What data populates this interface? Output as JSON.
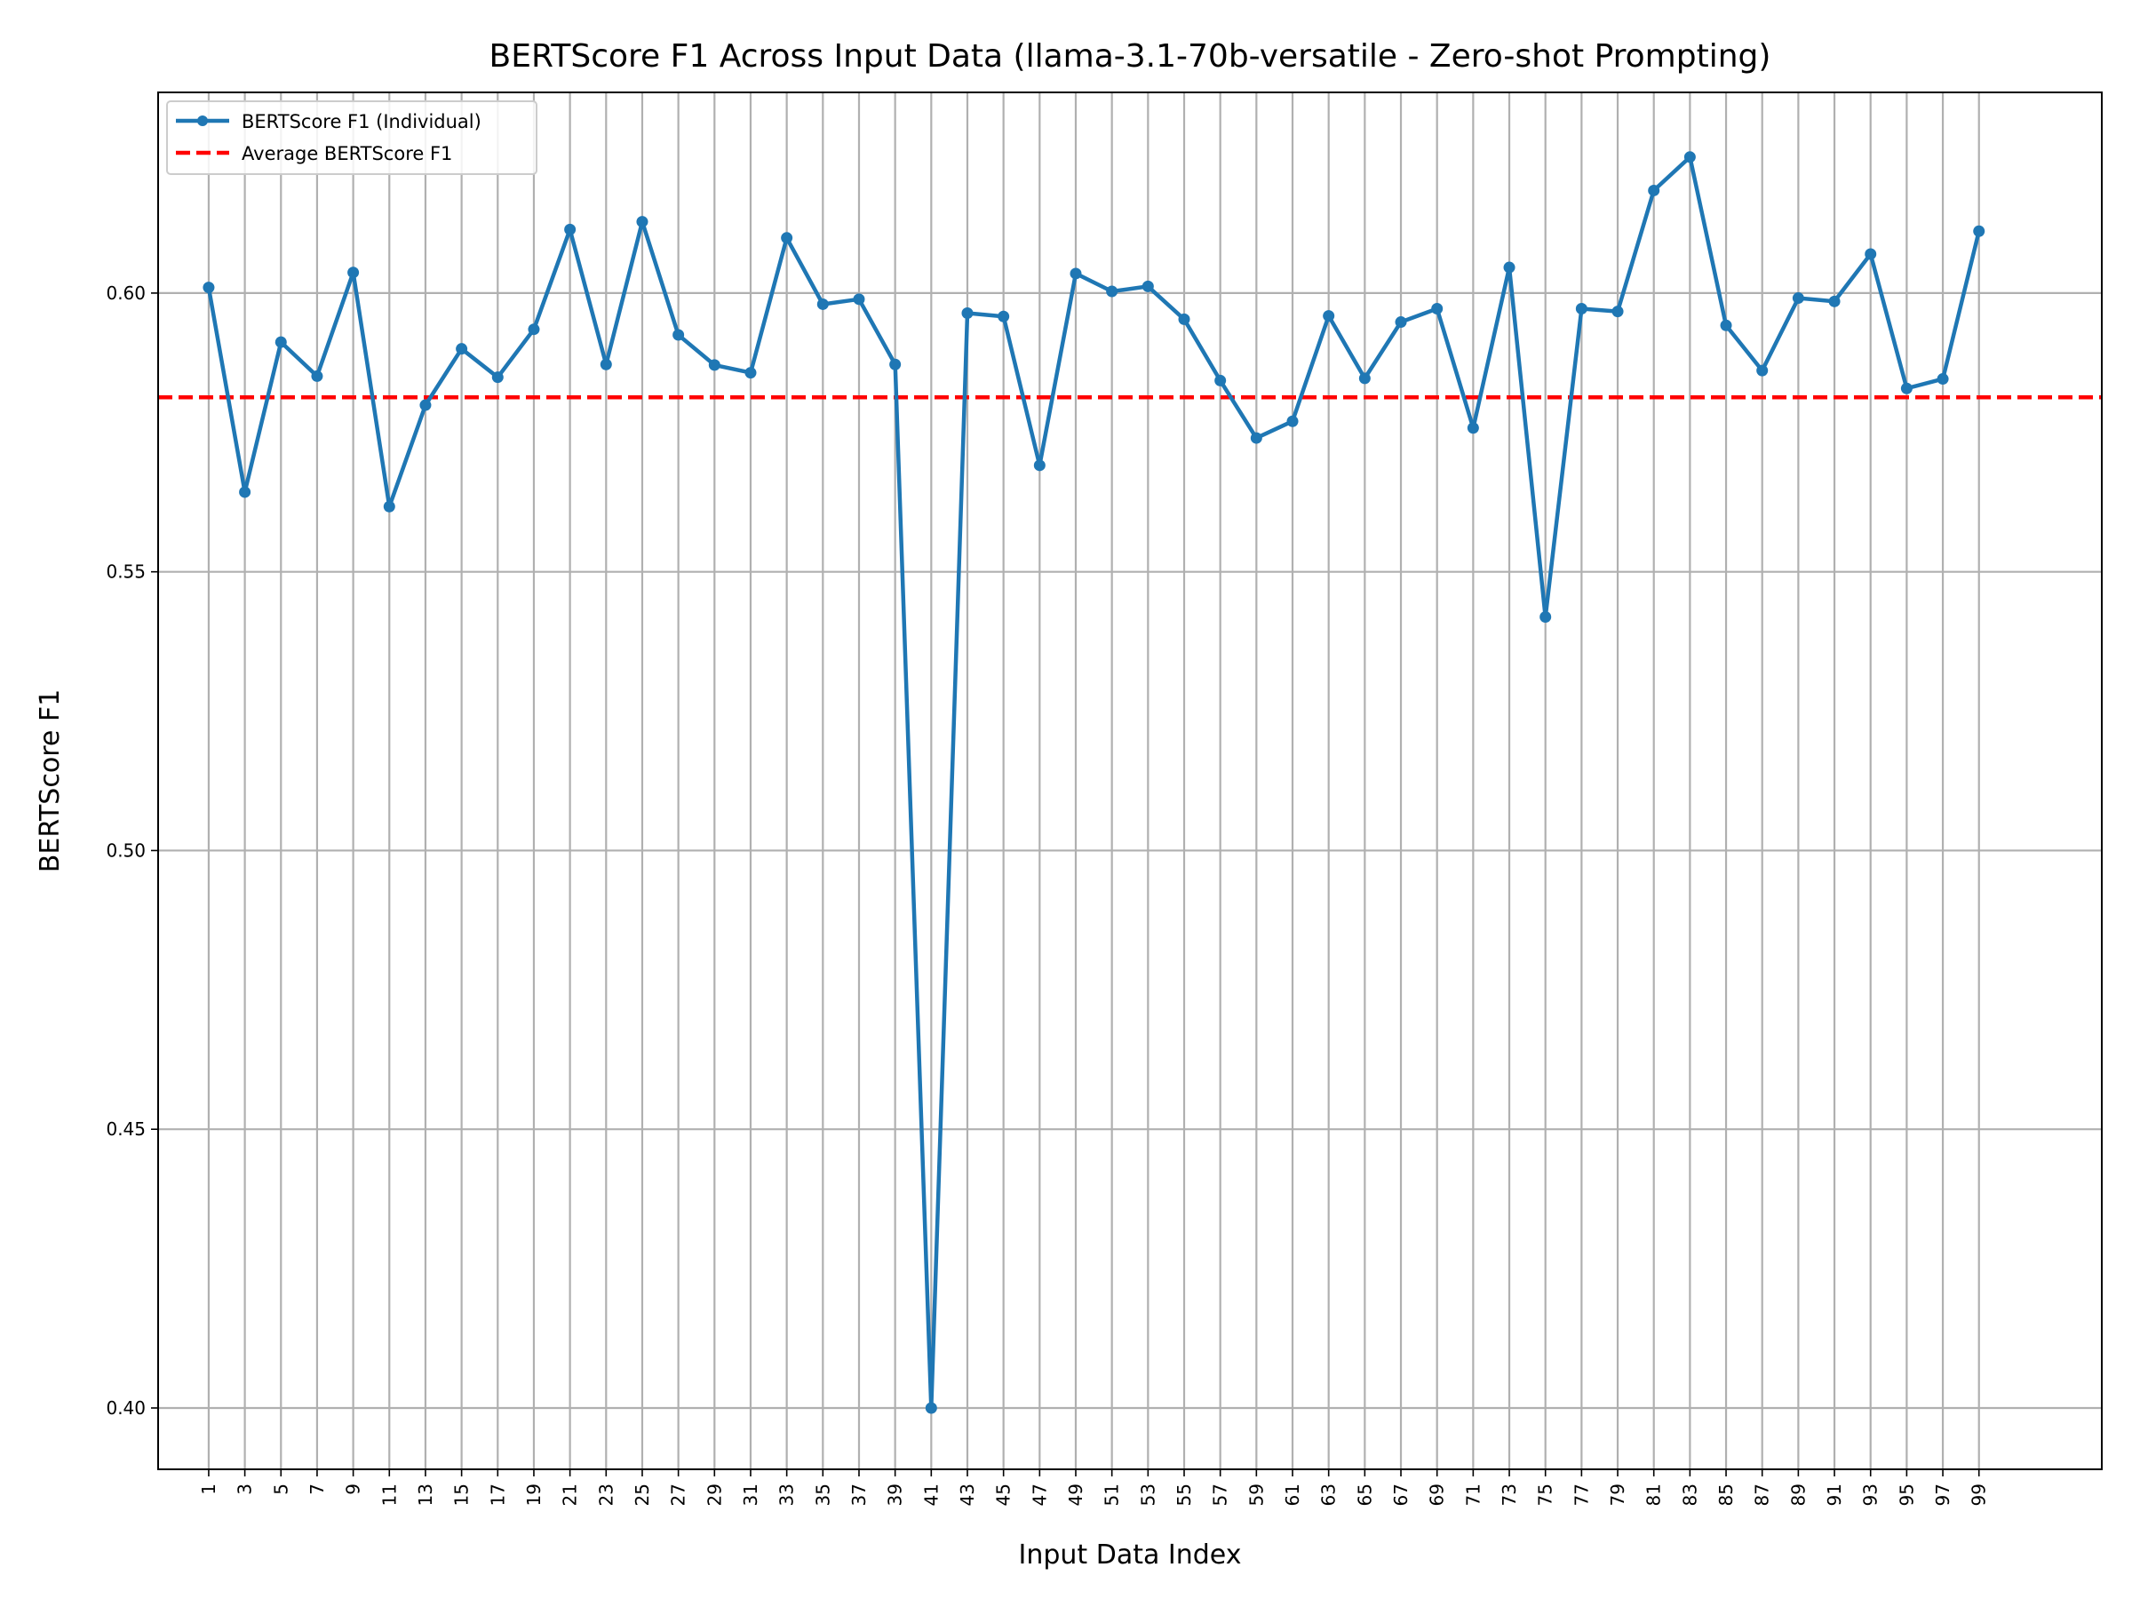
{
  "chart_data": {
    "type": "line",
    "title": "BERTScore F1 Across Input Data (llama-3.1-70b-versatile - Zero-shot Prompting)",
    "xlabel": "Input Data Index",
    "ylabel": "BERTScore F1",
    "xlim": [
      -1.4,
      52.4
    ],
    "ylim": [
      0.389,
      0.636
    ],
    "x_tick_labels": [
      "1",
      "3",
      "5",
      "7",
      "9",
      "11",
      "13",
      "15",
      "17",
      "19",
      "21",
      "23",
      "25",
      "27",
      "29",
      "31",
      "33",
      "35",
      "37",
      "39",
      "41",
      "43",
      "45",
      "47",
      "49",
      "51",
      "53",
      "55",
      "57",
      "59",
      "61",
      "63",
      "65",
      "67",
      "69",
      "71",
      "73",
      "75",
      "77",
      "79",
      "81",
      "83",
      "85",
      "87",
      "89",
      "91",
      "93",
      "95",
      "97",
      "99"
    ],
    "y_ticks": [
      0.4,
      0.45,
      0.5,
      0.55,
      0.6
    ],
    "y_tick_labels": [
      "0.40",
      "0.45",
      "0.50",
      "0.55",
      "0.60"
    ],
    "grid": true,
    "legend_position": "upper-left",
    "series": [
      {
        "name": "BERTScore F1 (Individual)",
        "color": "#1f77b4",
        "style": "solid-with-markers",
        "x": [
          "1",
          "3",
          "5",
          "7",
          "9",
          "11",
          "13",
          "15",
          "17",
          "19",
          "21",
          "23",
          "25",
          "27",
          "29",
          "31",
          "33",
          "35",
          "37",
          "39",
          "41",
          "43",
          "45",
          "47",
          "49",
          "51",
          "53",
          "55",
          "57",
          "59",
          "61",
          "63",
          "65",
          "67",
          "69",
          "71",
          "73",
          "75",
          "77",
          "79",
          "81",
          "83",
          "85",
          "87",
          "89",
          "91",
          "93",
          "95",
          "97",
          "99"
        ],
        "values": [
          0.601,
          0.5643,
          0.5912,
          0.5851,
          0.6037,
          0.5617,
          0.5799,
          0.59,
          0.5849,
          0.5935,
          0.6114,
          0.5872,
          0.6128,
          0.5925,
          0.5871,
          0.5857,
          0.6099,
          0.598,
          0.5989,
          0.5872,
          0.4,
          0.5964,
          0.5958,
          0.5691,
          0.6035,
          0.6003,
          0.6012,
          0.5953,
          0.5843,
          0.574,
          0.577,
          0.5959,
          0.5847,
          0.5948,
          0.5972,
          0.5758,
          0.6046,
          0.5419,
          0.5972,
          0.5967,
          0.6184,
          0.6244,
          0.5942,
          0.5861,
          0.5991,
          0.5985,
          0.607,
          0.5829,
          0.5846,
          0.6111
        ]
      },
      {
        "name": "Average BERTScore F1",
        "color": "#ff0000",
        "style": "dashed",
        "value": 0.5813
      }
    ]
  }
}
